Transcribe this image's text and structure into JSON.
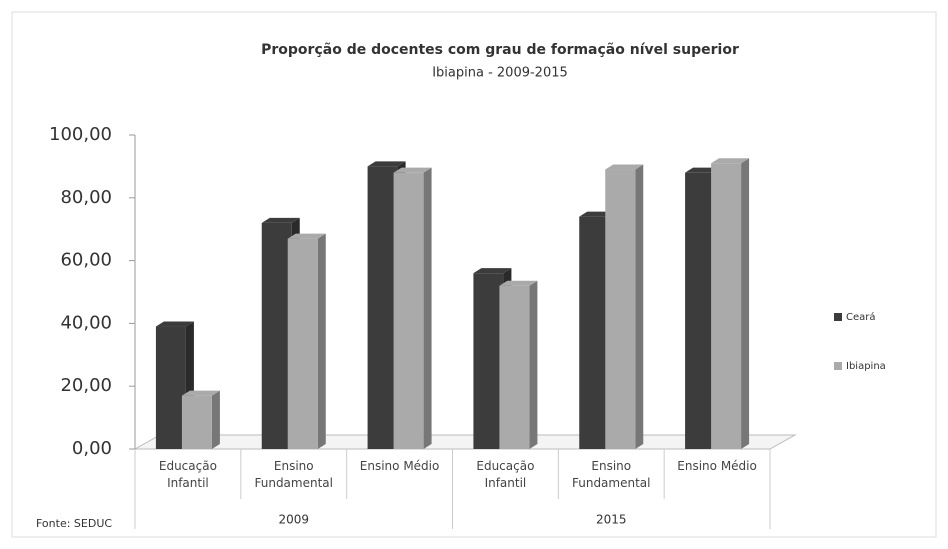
{
  "chart_data": {
    "type": "bar",
    "title": "Proporção de docentes com grau de formação nível superior",
    "subtitle": "Ibiapina - 2009-2015",
    "categories": [
      "Educação Infantil",
      "Ensino Fundamental",
      "Ensino Médio",
      "Educação Infantil",
      "Ensino Fundamental",
      "Ensino Médio"
    ],
    "group_labels": [
      "2009",
      "2015"
    ],
    "series": [
      {
        "name": "Ceará",
        "color": "#3c3c3c",
        "values": [
          39,
          72,
          90,
          56,
          74,
          88
        ]
      },
      {
        "name": "Ibiapina",
        "color": "#aaaaaa",
        "values": [
          17,
          67,
          88,
          52,
          89,
          91
        ]
      }
    ],
    "ylim": [
      0,
      100
    ],
    "yticks": [
      {
        "value": 0,
        "label": "0,00"
      },
      {
        "value": 20,
        "label": "20,00"
      },
      {
        "value": 40,
        "label": "40,00"
      },
      {
        "value": 60,
        "label": "60,00"
      },
      {
        "value": 80,
        "label": "80,00"
      },
      {
        "value": 100,
        "label": "100,00"
      }
    ],
    "legend": "right",
    "source": "Fonte: SEDUC"
  }
}
